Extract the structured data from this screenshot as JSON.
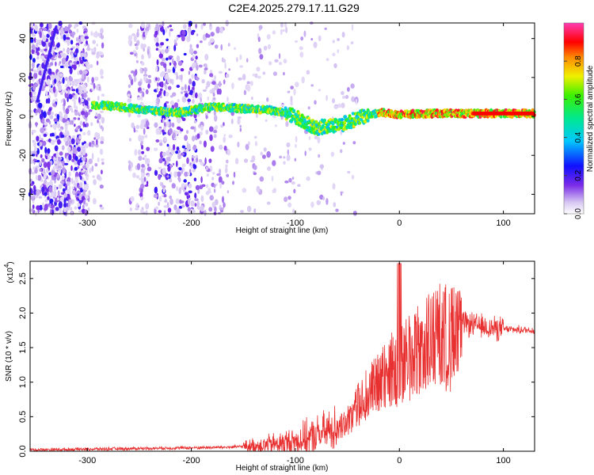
{
  "title": "C2E4.2025.279.17.11.G29",
  "chart_data": [
    {
      "type": "heatmap",
      "name": "spectrogram",
      "xlabel": "Height of straight line (km)",
      "ylabel": "Frequency (Hz)",
      "xlim": [
        -355,
        130
      ],
      "ylim": [
        -50,
        48
      ],
      "xticks": [
        -300,
        -200,
        -100,
        0,
        100
      ],
      "yticks": [
        -40,
        -20,
        0,
        20,
        40
      ],
      "colorbar": {
        "label": "Normalized spectral amplitude",
        "range": [
          0.0,
          1.0
        ],
        "ticks": [
          0.0,
          0.2,
          0.4,
          0.6,
          0.8
        ],
        "tick_labels": [
          "0.0",
          "0.2",
          "0.4",
          "0.6",
          "0.8"
        ]
      },
      "ridge": {
        "x": [
          -295,
          -270,
          -240,
          -210,
          -180,
          -150,
          -120,
          -100,
          -90,
          -80,
          -70,
          -55,
          -40,
          -20,
          0,
          30,
          60,
          90,
          130
        ],
        "y": [
          6,
          5,
          3,
          2,
          5,
          4,
          3,
          0,
          -3,
          -6,
          -5,
          -4,
          -1,
          2,
          1,
          1.5,
          1.5,
          1.5,
          1.5
        ]
      }
    },
    {
      "type": "line",
      "name": "snr",
      "xlabel": "Height of straight line (km)",
      "ylabel": "SNR (10 * v/v)",
      "y_multiplier": "(x10",
      "y_multiplier_exp": "4",
      "y_multiplier_close": ")",
      "xlim": [
        -355,
        130
      ],
      "ylim": [
        0,
        2.75
      ],
      "xticks": [
        -300,
        -200,
        -100,
        0,
        100
      ],
      "yticks": [
        0.0,
        0.5,
        1.0,
        1.5,
        2.0,
        2.5
      ],
      "ytick_labels": [
        "0.0",
        "0.5",
        "1.0",
        "1.5",
        "2.0",
        "2.5"
      ],
      "series": [
        {
          "name": "SNR",
          "color": "#e83030",
          "envelope_x": [
            -355,
            -300,
            -250,
            -200,
            -160,
            -120,
            -100,
            -80,
            -60,
            -50,
            -40,
            -30,
            -20,
            -10,
            0,
            10,
            20,
            30,
            40,
            50,
            60,
            70,
            80,
            90,
            100,
            110,
            130
          ],
          "envelope_y": [
            0.02,
            0.03,
            0.04,
            0.05,
            0.06,
            0.1,
            0.14,
            0.22,
            0.35,
            0.5,
            0.75,
            0.95,
            1.1,
            1.3,
            1.45,
            1.55,
            1.65,
            1.8,
            1.9,
            1.88,
            1.85,
            1.83,
            1.8,
            1.78,
            1.77,
            1.76,
            1.75
          ]
        }
      ]
    }
  ]
}
